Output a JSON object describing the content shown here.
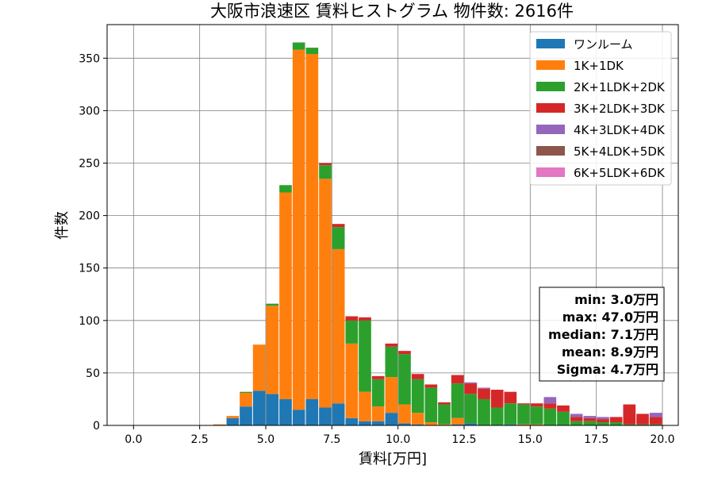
{
  "chart_data": {
    "type": "bar",
    "stacked": true,
    "title": "大阪市浪速区 賃料ヒストグラム  物件数: 2616件",
    "xlabel": "賃料[万円]",
    "ylabel": "件数",
    "xlim": [
      -1.0,
      20.6
    ],
    "ylim": [
      0,
      382
    ],
    "xticks": [
      0.0,
      2.5,
      5.0,
      7.5,
      10.0,
      12.5,
      15.0,
      17.5,
      20.0
    ],
    "xtick_labels": [
      "0.0",
      "2.5",
      "5.0",
      "7.5",
      "10.0",
      "12.5",
      "15.0",
      "17.5",
      "20.0"
    ],
    "yticks": [
      0,
      50,
      100,
      150,
      200,
      250,
      300,
      350
    ],
    "ytick_labels": [
      "0",
      "50",
      "100",
      "150",
      "200",
      "250",
      "300",
      "350"
    ],
    "grid": true,
    "legend_position": "top-right",
    "bin_width": 0.5,
    "bin_starts": [
      3.0,
      3.5,
      4.0,
      4.5,
      5.0,
      5.5,
      6.0,
      6.5,
      7.0,
      7.5,
      8.0,
      8.5,
      9.0,
      9.5,
      10.0,
      10.5,
      11.0,
      11.5,
      12.0,
      12.5,
      13.0,
      13.5,
      14.0,
      14.5,
      15.0,
      15.5,
      16.0,
      16.5,
      17.0,
      17.5,
      18.0,
      18.5,
      19.0,
      19.5
    ],
    "series": [
      {
        "name": "ワンルーム",
        "color": "#1f77b4",
        "values": [
          0,
          7,
          18,
          33,
          30,
          25,
          15,
          25,
          17,
          21,
          7,
          4,
          4,
          12,
          2,
          1,
          0,
          0,
          1,
          2,
          0,
          0,
          1,
          0,
          0,
          0,
          0,
          0,
          0,
          0,
          0,
          0,
          0,
          0
        ]
      },
      {
        "name": "1K+1DK",
        "color": "#ff7f0e",
        "values": [
          1,
          2,
          13,
          44,
          84,
          197,
          343,
          329,
          218,
          147,
          71,
          28,
          14,
          34,
          18,
          11,
          3,
          1,
          6,
          0,
          0,
          0,
          0,
          1,
          1,
          0,
          0,
          0,
          0,
          0,
          0,
          0,
          0,
          0
        ]
      },
      {
        "name": "2K+1LDK+2DK",
        "color": "#2ca02c",
        "values": [
          0,
          0,
          1,
          0,
          2,
          7,
          7,
          6,
          13,
          21,
          22,
          68,
          26,
          29,
          48,
          32,
          33,
          19,
          33,
          28,
          25,
          17,
          20,
          19,
          17,
          16,
          13,
          4,
          4,
          3,
          3,
          1,
          1,
          1
        ]
      },
      {
        "name": "3K+2LDK+3DK",
        "color": "#d62728",
        "values": [
          0,
          0,
          0,
          0,
          0,
          0,
          0,
          0,
          2,
          3,
          4,
          3,
          3,
          3,
          3,
          5,
          3,
          2,
          8,
          10,
          10,
          17,
          11,
          1,
          3,
          5,
          6,
          4,
          3,
          3,
          5,
          19,
          10,
          7
        ]
      },
      {
        "name": "4K+3LDK+4DK",
        "color": "#9467bd",
        "values": [
          0,
          0,
          0,
          0,
          0,
          0,
          0,
          0,
          0,
          0,
          0,
          0,
          0,
          0,
          0,
          0,
          0,
          0,
          0,
          1,
          1,
          0,
          0,
          0,
          0,
          6,
          0,
          3,
          2,
          2,
          0,
          0,
          0,
          4
        ]
      },
      {
        "name": "5K+4LDK+5DK",
        "color": "#8c564b",
        "values": [
          0,
          0,
          0,
          0,
          0,
          0,
          0,
          0,
          0,
          0,
          0,
          0,
          0,
          0,
          0,
          0,
          0,
          0,
          0,
          0,
          0,
          0,
          0,
          0,
          0,
          0,
          0,
          0,
          0,
          0,
          0,
          0,
          0,
          0
        ]
      },
      {
        "name": "6K+5LDK+6DK",
        "color": "#e377c2",
        "values": [
          0,
          0,
          0,
          0,
          0,
          0,
          0,
          0,
          0,
          0,
          0,
          0,
          0,
          0,
          0,
          0,
          0,
          0,
          0,
          0,
          0,
          0,
          0,
          0,
          0,
          0,
          0,
          0,
          0,
          0,
          0,
          0,
          0,
          0
        ]
      }
    ],
    "stats": [
      "min: 3.0万円",
      "max: 47.0万円",
      "median: 7.1万円",
      "mean: 8.9万円",
      "Sigma: 4.7万円"
    ]
  }
}
